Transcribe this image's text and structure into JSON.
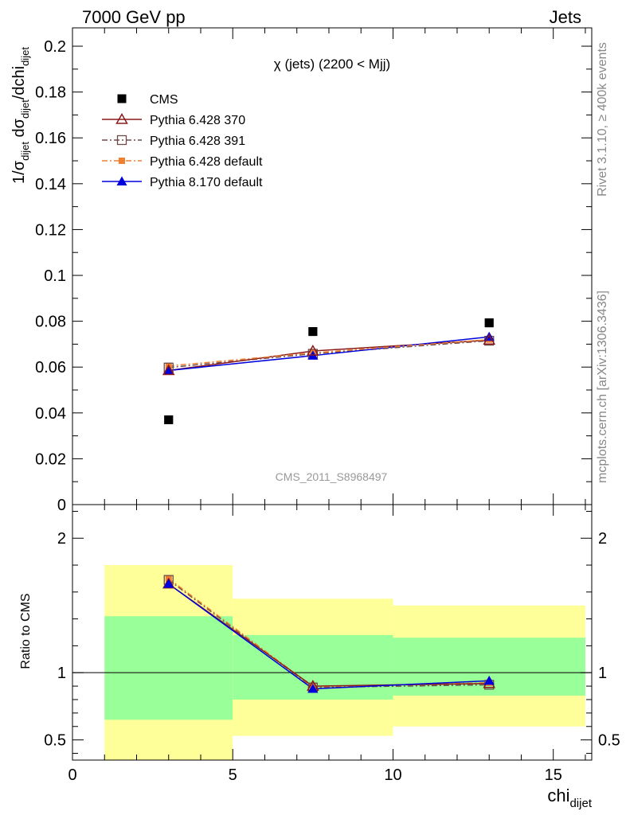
{
  "header": {
    "energy": "7000 GeV pp",
    "process": "Jets"
  },
  "side_labels": {
    "rivet": "Rivet 3.1.10, ≥ 400k events",
    "mcplots": "mcplots.cern.ch [arXiv:1306.3436]"
  },
  "watermark": "CMS_2011_S8968497",
  "chart_data": [
    {
      "type": "scatter",
      "panel": "main",
      "title": "χ (jets) (2200 < Mjj)",
      "ylabel": "1/σ_dijet dσ_dijet/dchi_dijet",
      "ylim": [
        0,
        0.208
      ],
      "xlim": [
        0,
        16.2
      ],
      "yticks": [
        "0",
        "0.02",
        "0.04",
        "0.06",
        "0.08",
        "0.1",
        "0.12",
        "0.14",
        "0.16",
        "0.18",
        "0.2"
      ],
      "legend_position": "top-left",
      "x": [
        3.0,
        7.5,
        13.0
      ],
      "series": [
        {
          "name": "CMS",
          "color": "#000000",
          "marker": "square-filled",
          "line": "none",
          "values": [
            0.037,
            0.0755,
            0.0793
          ]
        },
        {
          "name": "Pythia 6.428 370",
          "color": "#8b1a1a",
          "marker": "triangle-open",
          "line": "solid",
          "values": [
            0.0585,
            0.067,
            0.0718
          ]
        },
        {
          "name": "Pythia 6.428 391",
          "color": "#6e4a4a",
          "marker": "square-open",
          "line": "dashdot",
          "values": [
            0.0598,
            0.0658,
            0.0715
          ]
        },
        {
          "name": "Pythia 6.428 default",
          "color": "#f08030",
          "marker": "square-filled-small",
          "line": "dashdot",
          "values": [
            0.0605,
            0.0662,
            0.072
          ]
        },
        {
          "name": "Pythia 8.170 default",
          "color": "#0000dd",
          "marker": "triangle-filled",
          "line": "solid",
          "values": [
            0.0585,
            0.065,
            0.0732
          ]
        }
      ]
    },
    {
      "type": "line",
      "panel": "ratio",
      "ylabel": "Ratio to CMS",
      "xlabel": "chi_dijet",
      "ylim": [
        0.35,
        2.25
      ],
      "xlim": [
        0,
        16.2
      ],
      "yticks": [
        "0.5",
        "1",
        "2"
      ],
      "xticks": [
        "0",
        "5",
        "10",
        "15"
      ],
      "reference_line": 1,
      "bands": [
        {
          "x_range": [
            1,
            5
          ],
          "inner": [
            0.65,
            1.42
          ],
          "outer": [
            0.35,
            1.8
          ]
        },
        {
          "x_range": [
            5,
            10
          ],
          "inner": [
            0.8,
            1.28
          ],
          "outer": [
            0.53,
            1.55
          ]
        },
        {
          "x_range": [
            10,
            16
          ],
          "inner": [
            0.83,
            1.26
          ],
          "outer": [
            0.6,
            1.5
          ]
        }
      ],
      "band_colors": {
        "inner": "#99ff99",
        "outer": "#ffff99"
      },
      "x": [
        3.0,
        7.5,
        13.0
      ],
      "series": [
        {
          "name": "Pythia 6.428 370",
          "color": "#8b1a1a",
          "marker": "triangle-open",
          "line": "solid",
          "values": [
            1.66,
            0.9,
            0.92
          ]
        },
        {
          "name": "Pythia 6.428 391",
          "color": "#6e4a4a",
          "marker": "square-open",
          "line": "dashdot",
          "values": [
            1.69,
            0.89,
            0.91
          ]
        },
        {
          "name": "Pythia 6.428 default",
          "color": "#f08030",
          "marker": "square-filled-small",
          "line": "dashdot",
          "values": [
            1.7,
            0.895,
            0.925
          ]
        },
        {
          "name": "Pythia 8.170 default",
          "color": "#0000dd",
          "marker": "triangle-filled",
          "line": "solid",
          "values": [
            1.66,
            0.88,
            0.94
          ]
        }
      ]
    }
  ]
}
